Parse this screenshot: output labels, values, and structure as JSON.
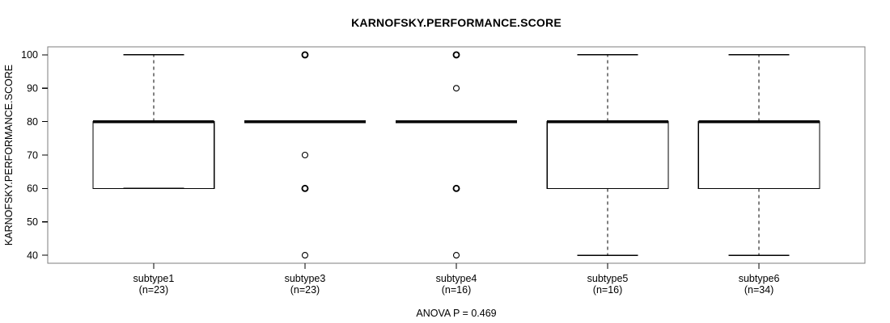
{
  "chart_data": {
    "type": "boxplot",
    "title": "KARNOFSKY.PERFORMANCE.SCORE",
    "ylabel": "KARNOFSKY.PERFORMANCE.SCORE",
    "xlabel": "",
    "footnote": "ANOVA P = 0.469",
    "ylim": [
      40,
      100
    ],
    "yticks": [
      40,
      50,
      60,
      70,
      80,
      90,
      100
    ],
    "grid": false,
    "legend_position": "none",
    "colors": {
      "data": "#000000",
      "frame": "#7d7d7d",
      "background": "#ffffff",
      "text": "#000000"
    },
    "groups": [
      {
        "label": "subtype1",
        "sublabel": "(n=23)",
        "n": 23,
        "q1": 60,
        "median": 80,
        "q3": 80,
        "whisker_low": 60,
        "whisker_high": 100,
        "outliers": []
      },
      {
        "label": "subtype3",
        "sublabel": "(n=23)",
        "n": 23,
        "q1": 80,
        "median": 80,
        "q3": 80,
        "whisker_low": 80,
        "whisker_high": 80,
        "outliers": [
          {
            "value": 100,
            "bold": true
          },
          {
            "value": 70,
            "bold": false
          },
          {
            "value": 60,
            "bold": true
          },
          {
            "value": 40,
            "bold": false
          }
        ]
      },
      {
        "label": "subtype4",
        "sublabel": "(n=16)",
        "n": 16,
        "q1": 80,
        "median": 80,
        "q3": 80,
        "whisker_low": 80,
        "whisker_high": 80,
        "outliers": [
          {
            "value": 100,
            "bold": true
          },
          {
            "value": 90,
            "bold": false
          },
          {
            "value": 60,
            "bold": true
          },
          {
            "value": 40,
            "bold": false
          }
        ]
      },
      {
        "label": "subtype5",
        "sublabel": "(n=16)",
        "n": 16,
        "q1": 60,
        "median": 80,
        "q3": 80,
        "whisker_low": 40,
        "whisker_high": 100,
        "outliers": []
      },
      {
        "label": "subtype6",
        "sublabel": "(n=34)",
        "n": 34,
        "q1": 60,
        "median": 80,
        "q3": 80,
        "whisker_low": 40,
        "whisker_high": 100,
        "outliers": []
      }
    ]
  }
}
